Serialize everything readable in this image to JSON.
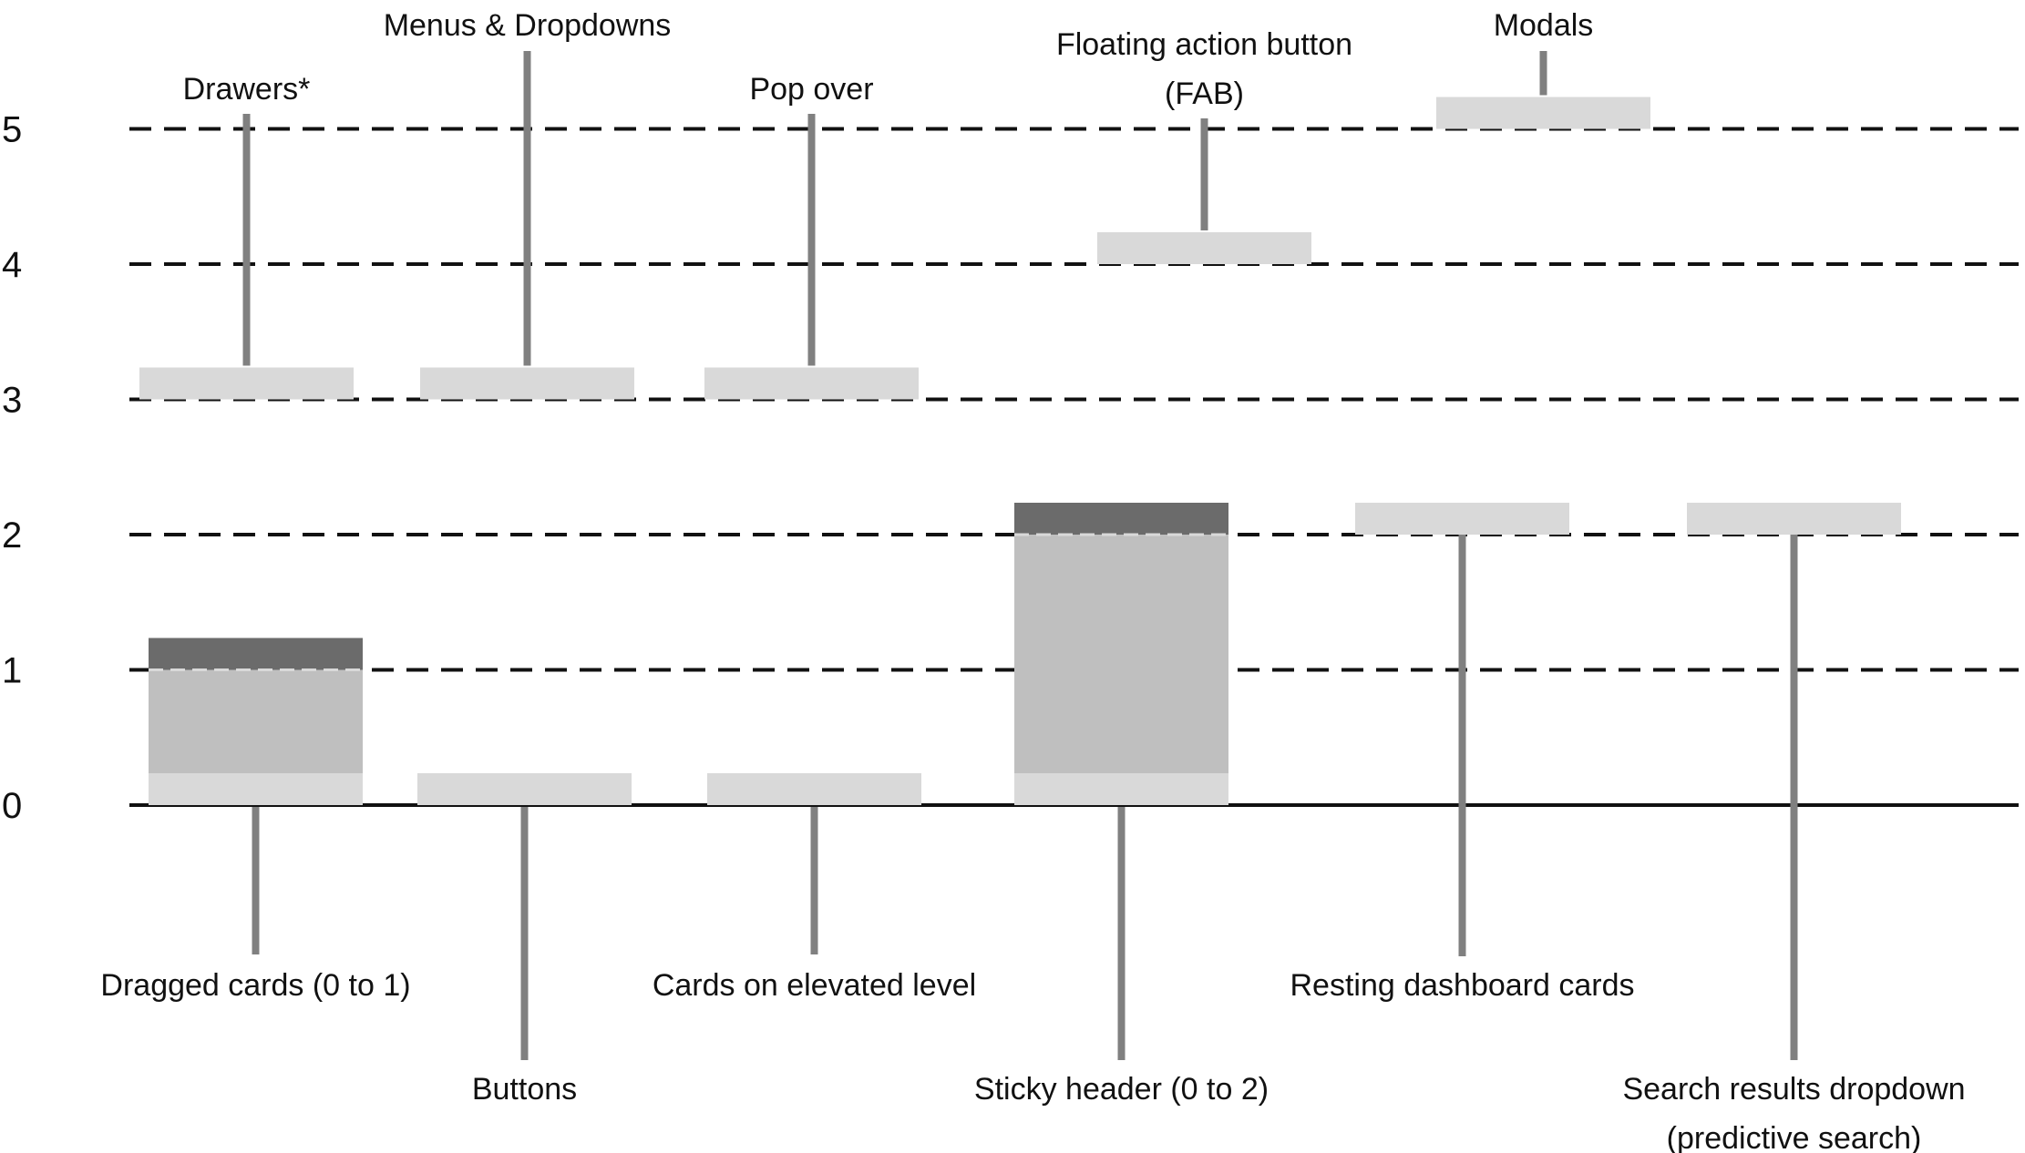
{
  "levels": [
    {
      "value": 0,
      "label": "0"
    },
    {
      "value": 1,
      "label": "1"
    },
    {
      "value": 2,
      "label": "2"
    },
    {
      "value": 3,
      "label": "3"
    },
    {
      "value": 4,
      "label": "4"
    },
    {
      "value": 5,
      "label": "5"
    }
  ],
  "items": [
    {
      "id": "dragged-cards",
      "lines": [
        "Dragged cards (0 to 1)"
      ],
      "level": 0,
      "raise_to": 1,
      "label_side": "below"
    },
    {
      "id": "buttons",
      "lines": [
        "Buttons"
      ],
      "level": 0,
      "label_side": "below"
    },
    {
      "id": "cards-elevated",
      "lines": [
        "Cards on elevated level"
      ],
      "level": 0,
      "label_side": "below"
    },
    {
      "id": "sticky-header",
      "lines": [
        "Sticky header (0 to 2)"
      ],
      "level": 0,
      "raise_to": 2,
      "label_side": "below"
    },
    {
      "id": "drawers",
      "lines": [
        "Drawers*"
      ],
      "level": 3,
      "label_side": "above"
    },
    {
      "id": "menus-dropdowns",
      "lines": [
        "Menus & Dropdowns"
      ],
      "level": 3,
      "label_side": "above"
    },
    {
      "id": "pop-over",
      "lines": [
        "Pop over"
      ],
      "level": 3,
      "label_side": "above"
    },
    {
      "id": "fab",
      "lines": [
        "Floating action button",
        "(FAB)"
      ],
      "level": 4,
      "label_side": "above"
    },
    {
      "id": "modals",
      "lines": [
        "Modals"
      ],
      "level": 5,
      "label_side": "above"
    },
    {
      "id": "resting-dashboard-cards",
      "lines": [
        "Resting dashboard cards"
      ],
      "level": 2,
      "label_side": "below"
    },
    {
      "id": "search-results-dropdown",
      "lines": [
        "Search results dropdown",
        "(predictive search)"
      ],
      "level": 2,
      "label_side": "below"
    }
  ],
  "colors": {
    "surface": "#d9d9d9",
    "raised_fill": "#bfbfbf",
    "raised_top": "#6b6b6b",
    "leader": "#808080",
    "gridline": "#111111",
    "baseline": "#111111"
  }
}
